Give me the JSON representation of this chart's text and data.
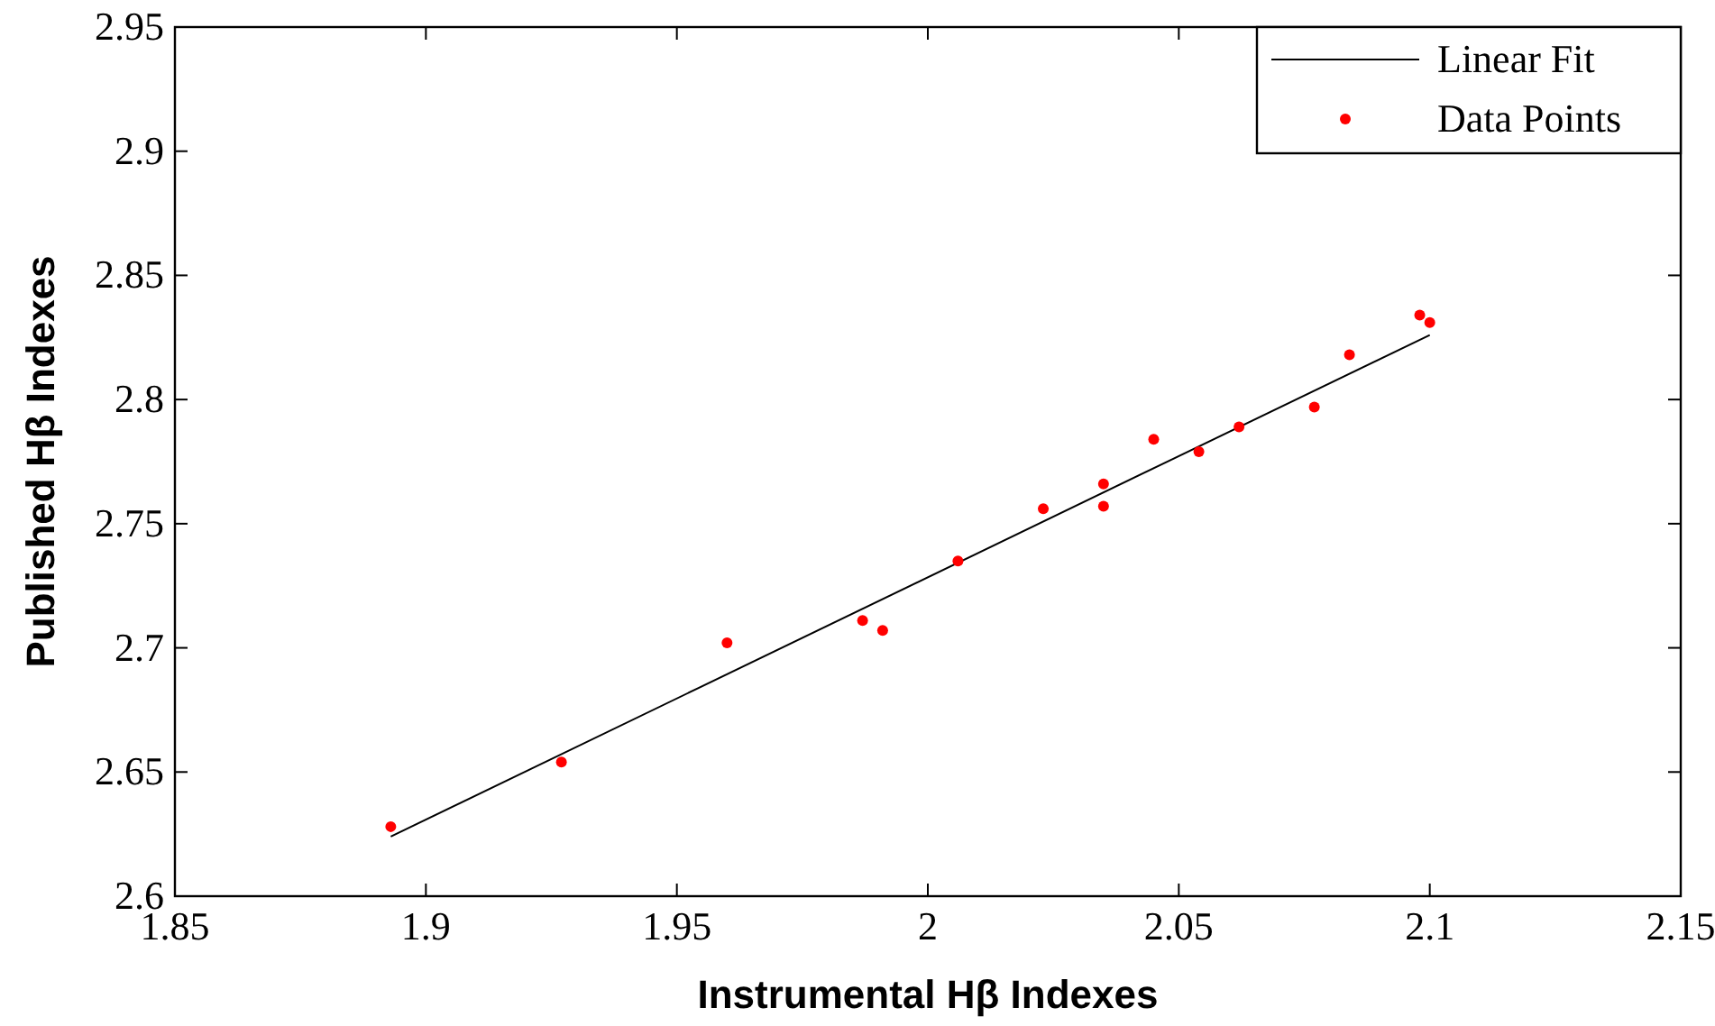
{
  "chart_data": {
    "type": "scatter",
    "xlabel": "Instrumental Hβ Indexes",
    "ylabel": "Published Hβ Indexes",
    "xlim": [
      1.85,
      2.15
    ],
    "ylim": [
      2.6,
      2.95
    ],
    "xticks": [
      1.85,
      1.9,
      1.95,
      2,
      2.05,
      2.1,
      2.15
    ],
    "yticks": [
      2.6,
      2.65,
      2.7,
      2.75,
      2.8,
      2.85,
      2.9,
      2.95
    ],
    "grid": false,
    "legend": "top right",
    "series": [
      {
        "name": "Linear Fit",
        "type": "line",
        "color": "#000000",
        "x": [
          1.893,
          2.1
        ],
        "values": [
          2.624,
          2.826
        ]
      },
      {
        "name": "Data Points",
        "color": "#ff0000",
        "marker": "circle",
        "x": [
          1.893,
          1.927,
          1.96,
          1.987,
          1.991,
          2.006,
          2.023,
          2.035,
          2.035,
          2.045,
          2.054,
          2.062,
          2.077,
          2.084,
          2.098,
          2.1
        ],
        "values": [
          2.628,
          2.654,
          2.702,
          2.711,
          2.707,
          2.735,
          2.756,
          2.766,
          2.757,
          2.784,
          2.779,
          2.789,
          2.797,
          2.818,
          2.834,
          2.831
        ]
      }
    ]
  }
}
